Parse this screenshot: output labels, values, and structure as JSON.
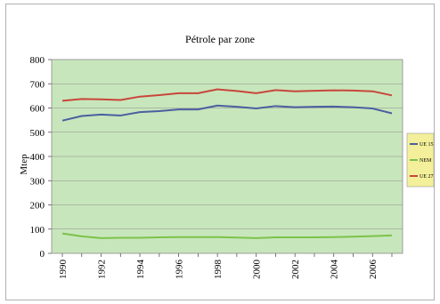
{
  "chart_data": {
    "type": "line",
    "title": "Pétrole par zone",
    "xlabel": "",
    "ylabel": "Mtep",
    "ylim": [
      0,
      800
    ],
    "yticks": [
      0,
      100,
      200,
      300,
      400,
      500,
      600,
      700,
      800
    ],
    "xlim": [
      1990,
      2007
    ],
    "xtick_labels": [
      "1990",
      "1992",
      "1994",
      "1996",
      "1998",
      "2000",
      "2002",
      "2004",
      "2006"
    ],
    "x": [
      1990,
      1991,
      1992,
      1993,
      1994,
      1995,
      1996,
      1997,
      1998,
      1999,
      2000,
      2001,
      2002,
      2003,
      2004,
      2005,
      2006,
      2007
    ],
    "series": [
      {
        "name": "UE 15",
        "color": "#4a5fa0",
        "values": [
          548,
          567,
          573,
          569,
          583,
          587,
          594,
          594,
          610,
          605,
          598,
          608,
          603,
          605,
          606,
          603,
          598,
          578
        ]
      },
      {
        "name": "NEM",
        "color": "#7cc24a",
        "values": [
          82,
          70,
          63,
          64,
          64,
          66,
          67,
          67,
          67,
          65,
          63,
          66,
          66,
          66,
          67,
          69,
          71,
          74
        ]
      },
      {
        "name": "UE 27",
        "color": "#c8463c",
        "values": [
          630,
          637,
          636,
          633,
          647,
          653,
          661,
          661,
          677,
          670,
          661,
          674,
          669,
          671,
          673,
          672,
          669,
          652
        ]
      }
    ],
    "legend_position": "right",
    "plot_background": "#c8e6bc",
    "grid": true,
    "legend_background": "#f3ef9a"
  }
}
